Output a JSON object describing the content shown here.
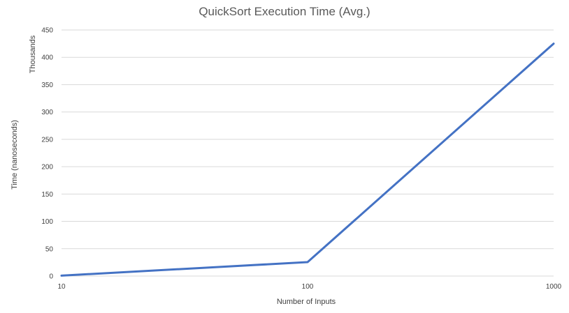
{
  "chart_data": {
    "type": "line",
    "title": "QuickSort Execution Time (Avg.)",
    "xlabel": "Number of Inputs",
    "ylabel": "Time (nanoseconds)",
    "y_display_units": "Thousands",
    "x_scale": "log",
    "x_ticks": [
      10,
      100,
      1000
    ],
    "y_ticks": [
      0,
      50,
      100,
      150,
      200,
      250,
      300,
      350,
      400,
      450
    ],
    "xlim": [
      10,
      1000
    ],
    "ylim": [
      0,
      450
    ],
    "grid": true,
    "series": [
      {
        "x": [
          10,
          100,
          1000
        ],
        "y": [
          0.8,
          25.5,
          425
        ],
        "color": "#4472C4"
      }
    ]
  }
}
